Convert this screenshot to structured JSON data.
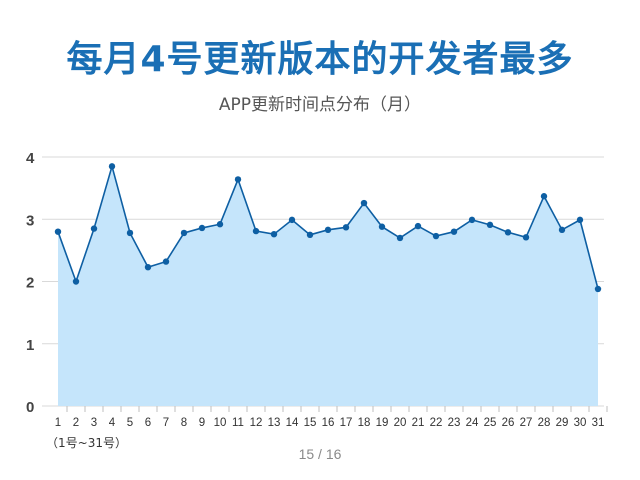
{
  "page": {
    "title": "每月4号更新版本的开发者最多",
    "subtitle": "APP更新时间点分布（月）",
    "pager": "15 / 16",
    "x_note": "（1号~31号）"
  },
  "colors": {
    "title": "#1a6fb5",
    "line": "#0e5fa3",
    "area": "#c5e5fb",
    "grid": "#d9d9d9"
  },
  "chart_data": {
    "type": "area",
    "title": "每月4号更新版本的开发者最多",
    "subtitle": "APP更新时间点分布（月）",
    "xlabel": "（1号~31号）",
    "ylabel": "",
    "ylim": [
      0,
      4
    ],
    "yticks": [
      "0",
      "1",
      "2",
      "3",
      "4"
    ],
    "grid": true,
    "legend": "none",
    "x": [
      "1",
      "2",
      "3",
      "4",
      "5",
      "6",
      "7",
      "8",
      "9",
      "10",
      "11",
      "12",
      "13",
      "14",
      "15",
      "16",
      "17",
      "18",
      "19",
      "20",
      "21",
      "22",
      "23",
      "24",
      "25",
      "26",
      "27",
      "28",
      "29",
      "30",
      "31"
    ],
    "series": [
      {
        "name": "",
        "values": [
          2.8,
          2.0,
          2.85,
          3.85,
          2.78,
          2.23,
          2.32,
          2.78,
          2.86,
          2.92,
          3.64,
          2.81,
          2.76,
          2.99,
          2.75,
          2.83,
          2.87,
          3.26,
          2.88,
          2.7,
          2.89,
          2.73,
          2.8,
          2.99,
          2.91,
          2.79,
          2.71,
          3.37,
          2.83,
          2.99,
          1.88
        ]
      }
    ]
  }
}
